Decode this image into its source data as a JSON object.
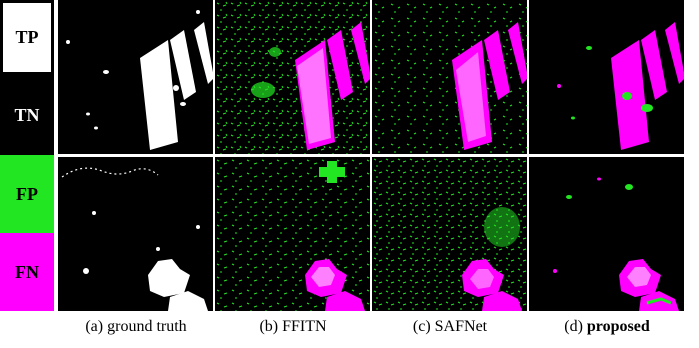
{
  "legend": {
    "tp": "TP",
    "tn": "TN",
    "fp": "FP",
    "fn": "FN"
  },
  "captions": {
    "a": {
      "prefix": "(a)",
      "text": "ground truth"
    },
    "b": {
      "prefix": "(b)",
      "text": "FFITN"
    },
    "c": {
      "prefix": "(c)",
      "text": "SAFNet"
    },
    "d": {
      "prefix": "(d)",
      "text": "proposed"
    }
  },
  "colors": {
    "tp": "#ffffff",
    "tn": "#000000",
    "fp": "#22e622",
    "fn": "#ff00ff"
  },
  "grid": {
    "rows": 2,
    "columns": [
      "ground truth",
      "FFITN",
      "SAFNet",
      "proposed"
    ]
  }
}
